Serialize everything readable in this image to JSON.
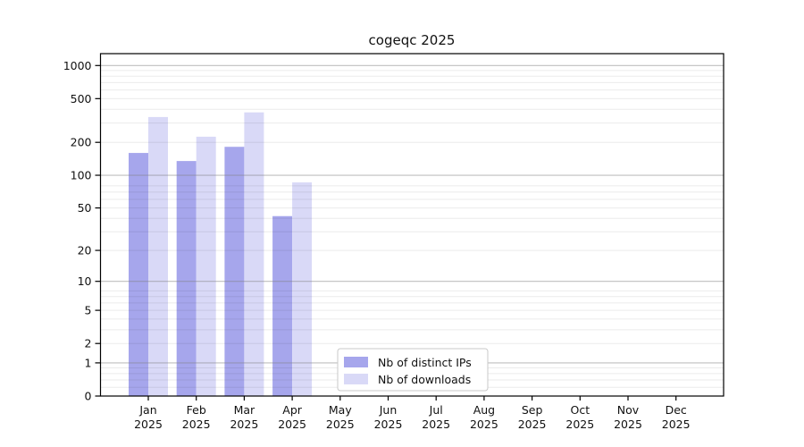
{
  "chart_data": {
    "type": "bar",
    "title": "cogeqc 2025",
    "categories": [
      "Jan",
      "Feb",
      "Mar",
      "Apr",
      "May",
      "Jun",
      "Jul",
      "Aug",
      "Sep",
      "Oct",
      "Nov",
      "Dec"
    ],
    "x_tick_second_line": "2025",
    "series": [
      {
        "name": "Nb of distinct IPs",
        "color": "#a6a6ec",
        "values": [
          160,
          135,
          182,
          42,
          0,
          0,
          0,
          0,
          0,
          0,
          0,
          0
        ]
      },
      {
        "name": "Nb of downloads",
        "color": "#d9d9f7",
        "values": [
          340,
          225,
          375,
          86,
          0,
          0,
          0,
          0,
          0,
          0,
          0,
          0
        ]
      }
    ],
    "y_ticks": [
      0,
      1,
      2,
      5,
      10,
      20,
      50,
      100,
      200,
      500,
      1000
    ],
    "y_scale": "log10(1+x)",
    "ylim": [
      0,
      1300
    ],
    "grid": true,
    "grid_major_values": [
      1,
      10,
      100,
      1000
    ],
    "grid_minor_values": [
      0.2,
      0.4,
      0.6,
      0.8,
      2,
      3,
      4,
      5,
      6,
      7,
      8,
      20,
      30,
      40,
      50,
      60,
      70,
      80,
      200,
      300,
      400,
      500,
      600,
      700,
      800,
      900
    ],
    "legend_position": "bottom-center",
    "axis_color": "#000000",
    "grid_major_color": "#808080",
    "grid_minor_color": "#000000",
    "background_color": "#ffffff"
  }
}
